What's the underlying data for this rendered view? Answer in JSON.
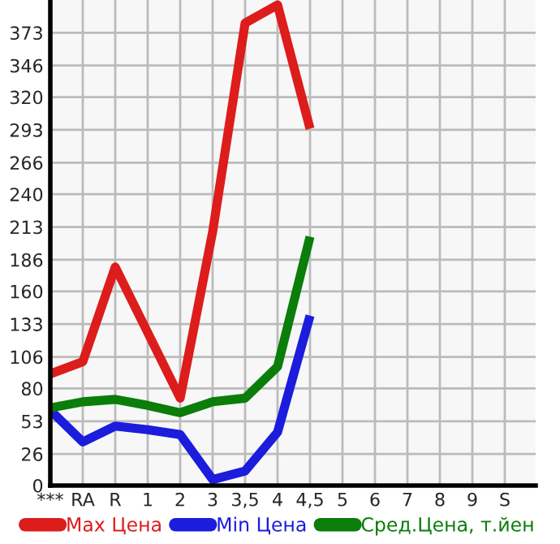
{
  "chart_data": {
    "type": "line",
    "categories": [
      "***",
      "RA",
      "R",
      "1",
      "2",
      "3",
      "3,5",
      "4",
      "4,5",
      "5",
      "6",
      "7",
      "8",
      "9",
      "S"
    ],
    "series": [
      {
        "name": "Max Цена",
        "color": "#dd1c1c",
        "values": [
          92,
          102,
          180,
          126,
          72,
          209,
          381,
          396,
          294,
          null,
          null,
          null,
          null,
          null,
          null
        ]
      },
      {
        "name": "Min Цена",
        "color": "#1c1cdd",
        "values": [
          62,
          36,
          49,
          46,
          42,
          5,
          12,
          44,
          140,
          null,
          null,
          null,
          null,
          null,
          null
        ]
      },
      {
        "name": "Сред.Цена, т.йен",
        "color": "#0a7d0a",
        "values": [
          64,
          69,
          71,
          66,
          60,
          69,
          72,
          98,
          205,
          null,
          null,
          null,
          null,
          null,
          null
        ]
      }
    ],
    "ylim": [
      0,
      400
    ],
    "yticks": [
      0,
      26,
      53,
      80,
      106,
      133,
      160,
      186,
      213,
      240,
      266,
      293,
      320,
      346,
      373
    ],
    "grid": true,
    "legend": "bottom",
    "marker": "none",
    "line_style": "solid"
  }
}
